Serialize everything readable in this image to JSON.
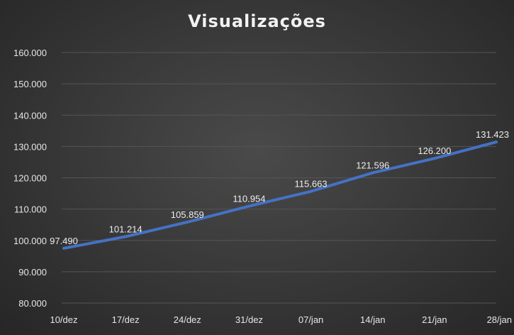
{
  "colors": {
    "line": "#4472c4",
    "grid": "#555555",
    "text": "#e6e6e6"
  },
  "chart_data": {
    "type": "line",
    "title": "Visualizações",
    "xlabel": "",
    "ylabel": "",
    "categories": [
      "10/dez",
      "17/dez",
      "24/dez",
      "31/dez",
      "07/jan",
      "14/jan",
      "21/jan",
      "28/jan"
    ],
    "series": [
      {
        "values": [
          97490,
          101214,
          105859,
          110954,
          115663,
          121596,
          126200,
          131423
        ],
        "labels": [
          "97.490",
          "101.214",
          "105.859",
          "110.954",
          "115.663",
          "121.596",
          "126.200",
          "131.423"
        ]
      }
    ],
    "ylim": [
      80000,
      160000
    ],
    "yticks": [
      80000,
      90000,
      100000,
      110000,
      120000,
      130000,
      140000,
      150000,
      160000
    ],
    "ytick_labels": [
      "80.000",
      "90.000",
      "100.000",
      "110.000",
      "120.000",
      "130.000",
      "140.000",
      "150.000",
      "160.000"
    ],
    "grid": true,
    "legend": "none"
  }
}
